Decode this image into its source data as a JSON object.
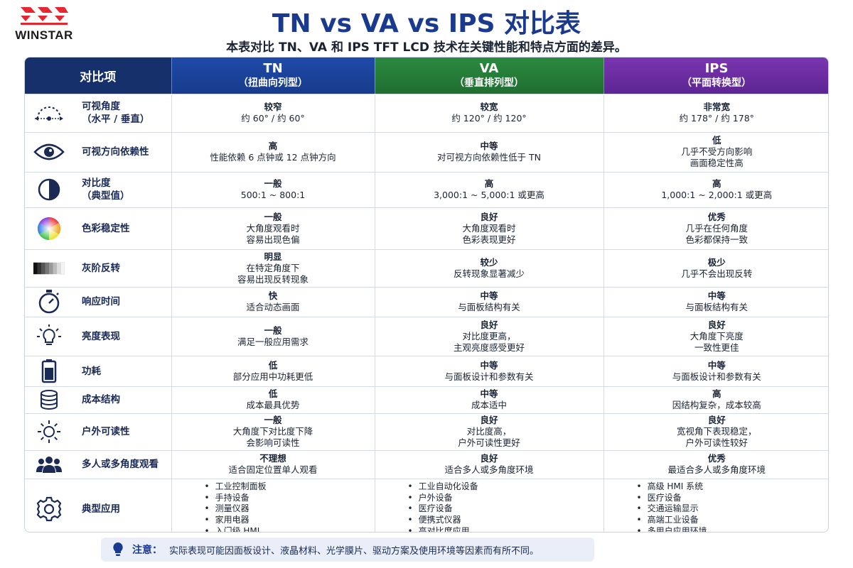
{
  "brand": {
    "name": "WINSTAR",
    "mark_color": "#e3262f"
  },
  "title": "TN vs VA vs IPS 对比表",
  "subtitle": "本表对比 TN、VA 和 IPS TFT LCD 技术在关键性能和特点方面的差异。",
  "header": {
    "item": "对比项",
    "tn": {
      "name": "TN",
      "sub": "（扭曲向列型）",
      "color": "#1f4aa8"
    },
    "va": {
      "name": "VA",
      "sub": "（垂直排列型）",
      "color": "#2b8a3f"
    },
    "ips": {
      "name": "IPS",
      "sub": "（平面转换型）",
      "color": "#7a35b0"
    }
  },
  "rows": [
    {
      "icon": "viewing-angle-icon",
      "label": [
        "可视角度",
        "（水平 / 垂直）"
      ],
      "tn": [
        "较窄",
        "约 60° / 约 60°"
      ],
      "va": [
        "较宽",
        "约 120° / 约 120°"
      ],
      "ips": [
        "非常宽",
        "约 178° / 约 178°"
      ]
    },
    {
      "icon": "eye-icon",
      "label": [
        "可视方向依赖性"
      ],
      "tn": [
        "高",
        "性能依赖 6 点钟或 12 点钟方向"
      ],
      "va": [
        "中等",
        "对可视方向依赖性低于 TN"
      ],
      "ips": [
        "低",
        "几乎不受方向影响",
        "画面稳定性高"
      ]
    },
    {
      "icon": "contrast-icon",
      "label": [
        "对比度",
        "（典型值）"
      ],
      "tn": [
        "一般",
        "500:1 ~ 800:1"
      ],
      "va": [
        "高",
        "3,000:1 ~ 5,000:1 或更高"
      ],
      "ips": [
        "高",
        "1,000:1 ~ 2,000:1 或更高"
      ]
    },
    {
      "icon": "color-wheel-icon",
      "label": [
        "色彩稳定性"
      ],
      "tn": [
        "一般",
        "大角度观看时",
        "容易出现色偏"
      ],
      "va": [
        "良好",
        "大角度观看时",
        "色彩表现更好"
      ],
      "ips": [
        "优秀",
        "几乎在任何角度",
        "色彩都保持一致"
      ]
    },
    {
      "icon": "grayscale-icon",
      "label": [
        "灰阶反转"
      ],
      "tn": [
        "明显",
        "在特定角度下",
        "容易出现反转现象"
      ],
      "va": [
        "较少",
        "反转现象显著减少"
      ],
      "ips": [
        "极少",
        "几乎不会出现反转"
      ]
    },
    {
      "icon": "stopwatch-icon",
      "label": [
        "响应时间"
      ],
      "tn": [
        "快",
        "适合动态画面"
      ],
      "va": [
        "中等",
        "与面板结构有关"
      ],
      "ips": [
        "中等",
        "与面板结构有关"
      ]
    },
    {
      "icon": "light-bulb-icon",
      "label": [
        "亮度表现"
      ],
      "tn": [
        "一般",
        "满足一般应用需求"
      ],
      "va": [
        "良好",
        "对比度更高，",
        "主观亮度感受更好"
      ],
      "ips": [
        "良好",
        "大角度下亮度",
        "一致性更佳"
      ]
    },
    {
      "icon": "battery-icon",
      "label": [
        "功耗"
      ],
      "tn": [
        "低",
        "部分应用中功耗更低"
      ],
      "va": [
        "中等",
        "与面板设计和参数有关"
      ],
      "ips": [
        "中等",
        "与面板设计和参数有关"
      ]
    },
    {
      "icon": "coin-stack-icon",
      "label": [
        "成本结构"
      ],
      "tn": [
        "低",
        "成本最具优势"
      ],
      "va": [
        "中等",
        "成本适中"
      ],
      "ips": [
        "高",
        "因结构复杂，成本较高"
      ]
    },
    {
      "icon": "sun-icon",
      "label": [
        "户外可读性"
      ],
      "tn": [
        "一般",
        "大角度下对比度下降",
        "会影响可读性"
      ],
      "va": [
        "良好",
        "对比度高，",
        "户外可读性更好"
      ],
      "ips": [
        "良好",
        "宽视角下表现稳定，",
        "户外可读性较好"
      ]
    },
    {
      "icon": "users-icon",
      "label": [
        "多人或多角度观看"
      ],
      "tn": [
        "不理想",
        "适合固定位置单人观看"
      ],
      "va": [
        "良好",
        "适合多人或多角度环境"
      ],
      "ips": [
        "优秀",
        "最适合多人或多角度环境"
      ]
    }
  ],
  "apps": {
    "icon": "gear-icon",
    "label": "典型应用",
    "tn": [
      "工业控制面板",
      "手持设备",
      "测量仪器",
      "家用电器",
      "入门级 HMI"
    ],
    "va": [
      "工业自动化设备",
      "户外设备",
      "医疗设备",
      "便携式仪器",
      "高对比度应用"
    ],
    "ips": [
      "高级 HMI 系统",
      "医疗设备",
      "交通运输显示",
      "高端工业设备",
      "多用户应用环境"
    ]
  },
  "note": {
    "icon": "bulb-note-icon",
    "key": "注意：",
    "text": "实际表现可能因面板设计、液晶材料、光学膜片、驱动方案及使用环境等因素而有所不同。"
  }
}
